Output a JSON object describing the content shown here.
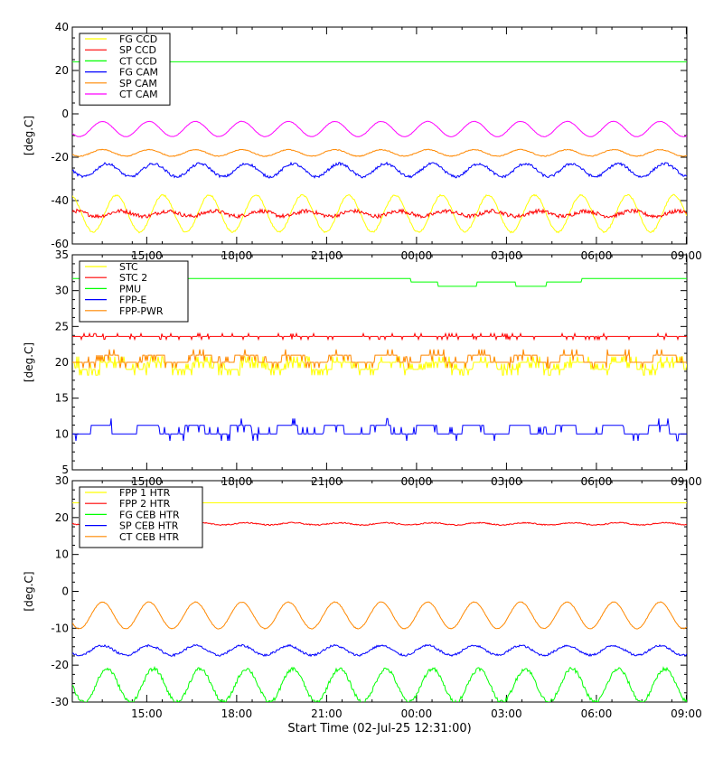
{
  "footer_label": "Start Time (02-Jul-25 12:31:00)",
  "chart_data": [
    {
      "type": "line",
      "ylabel": "[deg.C]",
      "ylim": [
        -60,
        40
      ],
      "yticks": [
        -60,
        -40,
        -20,
        0,
        20,
        40
      ],
      "ytick_labels": [
        "-60",
        "-40",
        "-20",
        "0",
        "20",
        "40"
      ],
      "x_hours": [
        0,
        20.5
      ],
      "xticks_hours": [
        2.483,
        5.483,
        8.483,
        11.483,
        14.483,
        17.483,
        20.483
      ],
      "xtick_labels": [
        "15:00",
        "18:00",
        "21:00",
        "00:00",
        "03:00",
        "06:00",
        "09:00"
      ],
      "grid": false,
      "legend": "top-left",
      "series": [
        {
          "name": "FG CCD",
          "color": "#ffff00",
          "base": -46,
          "amp": 8.5,
          "period": 1.55,
          "phase": 0.3,
          "noise": 0.4
        },
        {
          "name": "SP CCD",
          "color": "#ff0000",
          "base": -46,
          "amp": 1.2,
          "period": 1.55,
          "phase": 2.2,
          "noise": 0.9
        },
        {
          "name": "CT CCD",
          "color": "#00ff00",
          "base": 24,
          "amp": 0,
          "period": 1.55,
          "phase": 0,
          "noise": 0
        },
        {
          "name": "FG CAM",
          "color": "#0000ff",
          "base": -26,
          "amp": 3.0,
          "period": 1.55,
          "phase": 1.5,
          "noise": 0.6
        },
        {
          "name": "SP CAM",
          "color": "#ff8800",
          "base": -18,
          "amp": 1.5,
          "period": 1.55,
          "phase": 1.6,
          "noise": 0.2
        },
        {
          "name": "CT CAM",
          "color": "#ff00ff",
          "base": -7,
          "amp": 3.5,
          "period": 1.55,
          "phase": 1.6,
          "noise": 0.1
        }
      ]
    },
    {
      "type": "line",
      "ylabel": "[deg.C]",
      "ylim": [
        5,
        35
      ],
      "yticks": [
        5,
        10,
        15,
        20,
        25,
        30,
        35
      ],
      "ytick_labels": [
        "5",
        "10",
        "15",
        "20",
        "25",
        "30",
        "35"
      ],
      "x_hours": [
        0,
        20.5
      ],
      "xticks_hours": [
        2.483,
        5.483,
        8.483,
        11.483,
        14.483,
        17.483,
        20.483
      ],
      "xtick_labels": [
        "15:00",
        "18:00",
        "21:00",
        "00:00",
        "03:00",
        "06:00",
        "09:00"
      ],
      "grid": false,
      "legend": "top-left",
      "series": [
        {
          "name": "STC",
          "color": "#ffff00",
          "kind": "step",
          "levels": [
            19,
            20
          ],
          "period": 1.55,
          "phase": 0.4,
          "duty": 0.55,
          "spikes": 0.35
        },
        {
          "name": "STC 2",
          "color": "#ff0000",
          "kind": "step",
          "levels": [
            23.6,
            24.1
          ],
          "period": 1.55,
          "phase": 0.2,
          "duty": 0.0,
          "spikes": 0.12
        },
        {
          "name": "PMU",
          "color": "#00ff00",
          "kind": "step",
          "levels": [
            31.7,
            31.2,
            30.6
          ],
          "period": 1.55,
          "phase": 0.0,
          "duty": 0.0,
          "spikes": 0
        },
        {
          "name": "FPP-E",
          "color": "#0000ff",
          "kind": "step",
          "levels": [
            10,
            11.2
          ],
          "period": 1.55,
          "phase": 0.6,
          "duty": 0.45,
          "spikes": 0.08
        },
        {
          "name": "FPP-PWR",
          "color": "#ff8800",
          "kind": "step",
          "levels": [
            20,
            21
          ],
          "period": 1.55,
          "phase": 0.5,
          "duty": 0.5,
          "spikes": 0.15
        }
      ]
    },
    {
      "type": "line",
      "ylabel": "[deg.C]",
      "ylim": [
        -30,
        30
      ],
      "yticks": [
        -30,
        -20,
        -10,
        0,
        10,
        20,
        30
      ],
      "ytick_labels": [
        "-30",
        "-20",
        "-10",
        "0",
        "10",
        "20",
        "30"
      ],
      "x_hours": [
        0,
        20.5
      ],
      "xticks_hours": [
        2.483,
        5.483,
        8.483,
        11.483,
        14.483,
        17.483,
        20.483
      ],
      "xtick_labels": [
        "15:00",
        "18:00",
        "21:00",
        "00:00",
        "03:00",
        "06:00",
        "09:00"
      ],
      "grid": false,
      "legend": "top-left",
      "series": [
        {
          "name": "FPP 1 HTR",
          "color": "#ffff00",
          "base": 24,
          "amp": 0,
          "period": 1.55,
          "phase": 0,
          "noise": 0
        },
        {
          "name": "FPP 2 HTR",
          "color": "#ff0000",
          "base": 18.3,
          "amp": 0.3,
          "period": 1.55,
          "phase": 0.5,
          "noise": 0.15
        },
        {
          "name": "FG CEB HTR",
          "color": "#00ff00",
          "base": -25.5,
          "amp": 4.5,
          "period": 1.55,
          "phase": 1.5,
          "noise": 0.5
        },
        {
          "name": "SP CEB HTR",
          "color": "#0000ff",
          "base": -16,
          "amp": 1.3,
          "period": 1.55,
          "phase": 1.6,
          "noise": 0.3
        },
        {
          "name": "CT CEB HTR",
          "color": "#ff8800",
          "base": -6.5,
          "amp": 3.6,
          "period": 1.55,
          "phase": 1.6,
          "noise": 0.1
        }
      ]
    }
  ]
}
